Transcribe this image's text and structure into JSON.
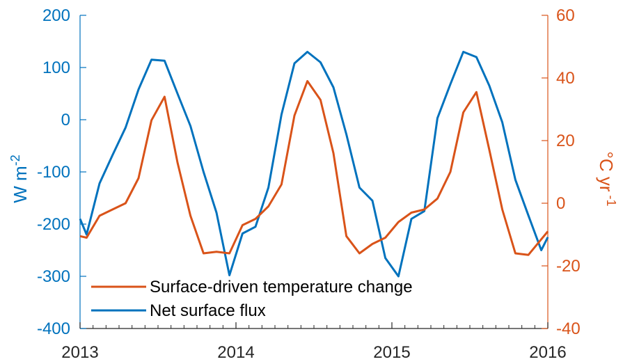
{
  "chart_data": {
    "type": "line",
    "x_axis": {
      "range": [
        2013,
        2016
      ],
      "ticks": [
        2013,
        2014,
        2015,
        2016
      ],
      "tick_labels": [
        "2013",
        "2014",
        "2015",
        "2016"
      ],
      "minor_ticks_per_year": 12
    },
    "y_left": {
      "label_base": "W m",
      "label_sup": "-2",
      "range": [
        -400,
        200
      ],
      "ticks": [
        -400,
        -300,
        -200,
        -100,
        0,
        100,
        200
      ],
      "tick_labels": [
        "-400",
        "-300",
        "-200",
        "-100",
        "0",
        "100",
        "200"
      ],
      "color": "#0072BD"
    },
    "y_right": {
      "label_base": "°C yr",
      "label_sup": " -1",
      "range": [
        -40,
        60
      ],
      "ticks": [
        -40,
        -20,
        0,
        20,
        40,
        60
      ],
      "tick_labels": [
        "-40",
        "-20",
        "0",
        "20",
        "40",
        "60"
      ],
      "color": "#D95319"
    },
    "series": [
      {
        "name": "Net surface flux",
        "axis": "left",
        "color": "#0072BD",
        "x": [
          2013.0,
          2013.042,
          2013.125,
          2013.208,
          2013.292,
          2013.375,
          2013.458,
          2013.542,
          2013.625,
          2013.708,
          2013.792,
          2013.875,
          2013.958,
          2014.042,
          2014.125,
          2014.208,
          2014.292,
          2014.375,
          2014.458,
          2014.542,
          2014.625,
          2014.708,
          2014.792,
          2014.875,
          2014.958,
          2015.042,
          2015.125,
          2015.208,
          2015.292,
          2015.375,
          2015.458,
          2015.542,
          2015.625,
          2015.708,
          2015.792,
          2015.875,
          2015.958,
          2016.0
        ],
        "values": [
          -190,
          -220,
          -122,
          -68,
          -15,
          58,
          115,
          113,
          50,
          -12,
          -100,
          -178,
          -298,
          -218,
          -205,
          -130,
          10,
          108,
          130,
          110,
          62,
          -28,
          -130,
          -155,
          -265,
          -300,
          -190,
          -175,
          3,
          68,
          130,
          120,
          65,
          -5,
          -115,
          -183,
          -250,
          -225
        ]
      },
      {
        "name": "Surface-driven temperature change",
        "axis": "right",
        "color": "#D95319",
        "x": [
          2013.0,
          2013.042,
          2013.125,
          2013.208,
          2013.292,
          2013.375,
          2013.458,
          2013.542,
          2013.625,
          2013.708,
          2013.792,
          2013.875,
          2013.958,
          2014.042,
          2014.125,
          2014.208,
          2014.292,
          2014.375,
          2014.458,
          2014.542,
          2014.625,
          2014.708,
          2014.792,
          2014.875,
          2014.958,
          2015.042,
          2015.125,
          2015.208,
          2015.292,
          2015.375,
          2015.458,
          2015.542,
          2015.625,
          2015.708,
          2015.792,
          2015.875,
          2015.958,
          2016.0
        ],
        "values": [
          -10.5,
          -11,
          -4,
          -2,
          0,
          8,
          26.5,
          34,
          13,
          -4,
          -16,
          -15.5,
          -16,
          -7,
          -5,
          -1,
          6,
          28,
          39,
          33,
          16,
          -10.5,
          -16,
          -13,
          -11,
          -6,
          -3,
          -2,
          1.5,
          10,
          29,
          35.5,
          17,
          -2,
          -16,
          -16.5,
          -11.5,
          -9
        ]
      }
    ],
    "legend": {
      "placement": "bottom-left",
      "entries": [
        "Surface-driven temperature change",
        "Net surface flux"
      ]
    },
    "grid": false
  }
}
